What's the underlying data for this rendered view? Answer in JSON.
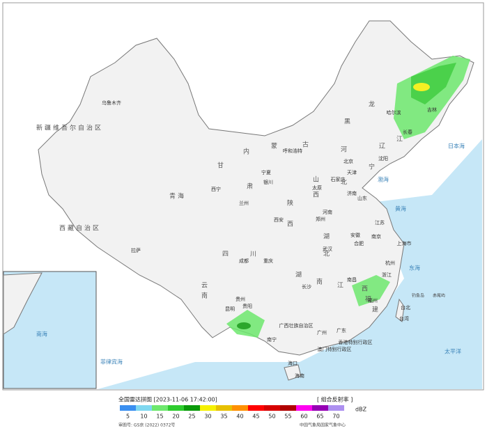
{
  "map": {
    "labels": [
      "乌鲁木齐",
      "新疆维吾尔自治区",
      "西藏自治区",
      "拉萨",
      "青海",
      "西宁",
      "甘",
      "肃",
      "兰州",
      "内",
      "蒙",
      "古",
      "呼和浩特",
      "黑",
      "龙",
      "江",
      "哈尔滨",
      "吉林",
      "长春",
      "辽",
      "宁",
      "沈阳",
      "北京",
      "天津",
      "河",
      "北",
      "石家庄",
      "山",
      "西",
      "太原",
      "宁夏",
      "银川",
      "陕",
      "西",
      "西安",
      "河南",
      "郑州",
      "山东",
      "济南",
      "江苏",
      "南京",
      "上海市",
      "安徽",
      "合肥",
      "湖",
      "北",
      "武汉",
      "四",
      "川",
      "成都",
      "重庆",
      "贵州",
      "贵阳",
      "云",
      "南",
      "昆明",
      "湖",
      "南",
      "长沙",
      "江",
      "西",
      "南昌",
      "浙江",
      "杭州",
      "福",
      "建",
      "福州",
      "台湾",
      "台北",
      "广东",
      "广州",
      "广西壮族自治区",
      "南宁",
      "海南",
      "海口",
      "香港特别行政区",
      "澳门特别行政区",
      "日本海",
      "黄海",
      "东海",
      "太平洋",
      "南海",
      "钓鱼岛",
      "赤尾屿",
      "菲律宾海",
      "渤海"
    ]
  },
  "legend": {
    "title": "全国雷达拼图 [2023-11-06 17:42:00]",
    "product": "[ 组合反射率 ]",
    "unit": "dBZ",
    "levels": [
      5,
      10,
      15,
      20,
      25,
      30,
      35,
      40,
      45,
      50,
      55,
      60,
      65,
      70
    ],
    "colors": [
      "#3a8ff0",
      "#7fd8f0",
      "#6ee86e",
      "#2ecc2e",
      "#0a9a0a",
      "#f5f000",
      "#e7c000",
      "#ff9000",
      "#ff0000",
      "#d60000",
      "#b00000",
      "#ff00f0",
      "#9600b4",
      "#ad90f0"
    ],
    "approval": "审图号: GS京 (2022) 0372号",
    "source": "中国气象局国家气象中心"
  }
}
